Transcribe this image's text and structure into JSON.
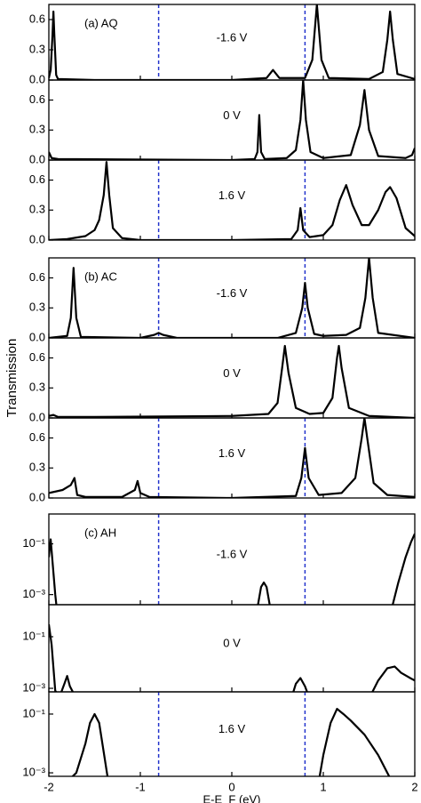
{
  "chart_data": [
    {
      "type": "line",
      "panel_label": "(a) AQ",
      "label": "-1.6 V",
      "color": "#000000",
      "log": false,
      "xlim": [
        -2,
        2
      ],
      "xticks": [
        -2,
        -1,
        0,
        1,
        2
      ],
      "ylim": [
        0,
        0.75
      ],
      "yticks": [
        {
          "value": 0,
          "label": "0.0"
        },
        0.3,
        0.6
      ],
      "vlines": [
        -0.8,
        0.8
      ],
      "vline_color": "#2233cc",
      "x": [
        -2,
        -1.98,
        -1.96,
        -1.95,
        -1.94,
        -1.92,
        -1.9,
        -1.5,
        0,
        0.38,
        0.45,
        0.52,
        0.8,
        0.88,
        0.93,
        0.98,
        1.06,
        1.5,
        1.65,
        1.7,
        1.73,
        1.76,
        1.81,
        2
      ],
      "values": [
        0.02,
        0.1,
        0.45,
        0.68,
        0.45,
        0.05,
        0.01,
        0,
        0,
        0.02,
        0.1,
        0.02,
        0.02,
        0.2,
        0.75,
        0.2,
        0.02,
        0.01,
        0.08,
        0.4,
        0.68,
        0.4,
        0.06,
        0.01
      ]
    },
    {
      "type": "line",
      "label": "0 V",
      "color": "#000000",
      "log": false,
      "xlim": [
        -2,
        2
      ],
      "xticks": [
        -2,
        -1,
        0,
        1,
        2
      ],
      "ylim": [
        0,
        0.8
      ],
      "yticks": [
        {
          "value": 0,
          "label": "0.0"
        },
        0.3,
        0.6
      ],
      "x": [
        -2,
        -1.97,
        -1.9,
        0,
        0.25,
        0.28,
        0.3,
        0.32,
        0.36,
        0.6,
        0.7,
        0.75,
        0.78,
        0.81,
        0.86,
        1.0,
        1.3,
        1.4,
        1.45,
        1.5,
        1.6,
        1.9,
        1.97,
        2
      ],
      "values": [
        0.08,
        0.02,
        0.01,
        0,
        0.01,
        0.08,
        0.45,
        0.08,
        0.01,
        0.02,
        0.1,
        0.4,
        0.8,
        0.4,
        0.08,
        0.02,
        0.05,
        0.35,
        0.7,
        0.3,
        0.04,
        0.02,
        0.05,
        0.12
      ]
    },
    {
      "type": "line",
      "label": "1.6 V",
      "color": "#000000",
      "log": false,
      "xlim": [
        -2,
        2
      ],
      "xticks": [
        -2,
        -1,
        0,
        1,
        2
      ],
      "ylim": [
        0,
        0.8
      ],
      "yticks": [
        {
          "value": 0,
          "label": "0.0"
        },
        0.3,
        0.6
      ],
      "vlines": [
        -0.8,
        0.8
      ],
      "vline_color": "#2233cc",
      "x": [
        -2,
        -1.8,
        -1.6,
        -1.5,
        -1.45,
        -1.4,
        -1.37,
        -1.34,
        -1.3,
        -1.2,
        -1,
        0,
        0.65,
        0.72,
        0.75,
        0.78,
        0.85,
        1.0,
        1.1,
        1.18,
        1.25,
        1.32,
        1.42,
        1.5,
        1.6,
        1.68,
        1.73,
        1.8,
        1.9,
        2
      ],
      "values": [
        0,
        0.01,
        0.04,
        0.1,
        0.2,
        0.45,
        0.78,
        0.45,
        0.12,
        0.02,
        0,
        0,
        0.01,
        0.1,
        0.32,
        0.1,
        0.03,
        0.05,
        0.15,
        0.4,
        0.55,
        0.35,
        0.15,
        0.15,
        0.3,
        0.48,
        0.53,
        0.42,
        0.12,
        0.04
      ]
    },
    {
      "type": "line",
      "panel_label": "(b) AC",
      "label": "-1.6 V",
      "color": "#000000",
      "log": false,
      "xlim": [
        -2,
        2
      ],
      "xticks": [
        -2,
        -1,
        0,
        1,
        2
      ],
      "ylim": [
        0,
        0.8
      ],
      "yticks": [
        {
          "value": 0,
          "label": "0.0"
        },
        0.3,
        0.6
      ],
      "vlines": [
        -0.8,
        0.8
      ],
      "vline_color": "#2233cc",
      "x": [
        -2,
        -1.8,
        -1.76,
        -1.73,
        -1.7,
        -1.65,
        -1,
        -0.85,
        -0.8,
        -0.75,
        -0.6,
        0.5,
        0.7,
        0.77,
        0.8,
        0.83,
        0.9,
        1.0,
        1.25,
        1.4,
        1.46,
        1.5,
        1.54,
        1.6,
        2
      ],
      "values": [
        0,
        0.02,
        0.2,
        0.7,
        0.2,
        0.01,
        0,
        0.03,
        0.05,
        0.03,
        0,
        0,
        0.05,
        0.3,
        0.55,
        0.3,
        0.04,
        0.02,
        0.03,
        0.1,
        0.4,
        0.8,
        0.4,
        0.05,
        0
      ]
    },
    {
      "type": "line",
      "label": "0 V",
      "color": "#000000",
      "log": false,
      "ylabel": "Transmission",
      "xlim": [
        -2,
        2
      ],
      "xticks": [
        -2,
        -1,
        0,
        1,
        2
      ],
      "ylim": [
        0,
        0.8
      ],
      "yticks": [
        {
          "value": 0,
          "label": "0.0"
        },
        0.3,
        0.6
      ],
      "x": [
        -2,
        -1.95,
        -1.9,
        -1.5,
        0,
        0.4,
        0.5,
        0.55,
        0.58,
        0.62,
        0.7,
        0.85,
        1.0,
        1.1,
        1.15,
        1.17,
        1.2,
        1.28,
        1.5,
        2
      ],
      "values": [
        0.02,
        0.03,
        0.01,
        0.01,
        0.02,
        0.04,
        0.15,
        0.5,
        0.72,
        0.45,
        0.1,
        0.04,
        0.05,
        0.2,
        0.6,
        0.72,
        0.5,
        0.1,
        0.02,
        0
      ]
    },
    {
      "type": "line",
      "label": "1.6 V",
      "color": "#000000",
      "log": false,
      "xlim": [
        -2,
        2
      ],
      "xticks": [
        -2,
        -1,
        0,
        1,
        2
      ],
      "ylim": [
        0,
        0.8
      ],
      "yticks": [
        {
          "value": 0,
          "label": "0.0"
        },
        0.3,
        0.6
      ],
      "vlines": [
        -0.8,
        0.8
      ],
      "vline_color": "#2233cc",
      "x": [
        -2,
        -1.85,
        -1.76,
        -1.72,
        -1.69,
        -1.6,
        -1.2,
        -1.06,
        -1.03,
        -1.0,
        -0.9,
        0,
        0.7,
        0.76,
        0.8,
        0.84,
        0.95,
        1.2,
        1.35,
        1.42,
        1.45,
        1.48,
        1.55,
        1.7,
        2
      ],
      "values": [
        0.05,
        0.08,
        0.13,
        0.2,
        0.03,
        0.01,
        0.01,
        0.08,
        0.17,
        0.05,
        0.01,
        0,
        0.02,
        0.2,
        0.5,
        0.2,
        0.03,
        0.05,
        0.2,
        0.6,
        0.8,
        0.6,
        0.15,
        0.03,
        0.01
      ]
    },
    {
      "type": "line",
      "panel_label": "(c) AH",
      "label": "-1.6 V",
      "color": "#000000",
      "log": true,
      "xlim": [
        -2,
        2
      ],
      "xticks": [
        -2,
        -1,
        0,
        1,
        2
      ],
      "ylim": [
        0.0004,
        1.5
      ],
      "yticks": [
        {
          "value": 0.1,
          "label": "10⁻¹"
        },
        {
          "value": 0.001,
          "label": "10⁻³"
        }
      ],
      "vlines": [
        -0.8,
        0.8
      ],
      "vline_color": "#2233cc",
      "x": [
        -2,
        -1.98,
        -1.96,
        -1.93,
        -1.9,
        0.28,
        0.32,
        0.35,
        0.38,
        0.42,
        1.75,
        1.82,
        1.9,
        1.96,
        2
      ],
      "values": [
        0.03,
        0.15,
        0.02,
        0.001,
        0.0001,
        0.0003,
        0.002,
        0.003,
        0.002,
        0.0003,
        0.0003,
        0.003,
        0.03,
        0.12,
        0.25
      ]
    },
    {
      "type": "line",
      "label": "0 V",
      "color": "#000000",
      "log": true,
      "xlim": [
        -2,
        2
      ],
      "xticks": [
        -2,
        -1,
        0,
        1,
        2
      ],
      "ylim": [
        0.00073,
        1.74
      ],
      "yticks": [
        {
          "value": 0.1,
          "label": "10⁻¹"
        },
        {
          "value": 0.001,
          "label": "10⁻³"
        }
      ],
      "x": [
        -2,
        -1.97,
        -1.93,
        -1.88,
        -1.83,
        -1.8,
        -1.77,
        -1.7,
        0.65,
        0.7,
        0.75,
        0.8,
        0.85,
        1.5,
        1.6,
        1.7,
        1.78,
        1.85,
        1.95,
        2
      ],
      "values": [
        0.3,
        0.05,
        0.0008,
        0.0005,
        0.0015,
        0.003,
        0.0012,
        0.0004,
        0.0004,
        0.0015,
        0.0025,
        0.0012,
        0.0004,
        0.0004,
        0.002,
        0.006,
        0.007,
        0.004,
        0.0025,
        0.002
      ]
    },
    {
      "type": "line",
      "label": "1.6 V",
      "color": "#000000",
      "log": true,
      "xlabel": "E-E_F (eV)",
      "xlim": [
        -2,
        2
      ],
      "xticks": [
        -2,
        -1,
        0,
        1,
        2
      ],
      "ylim": [
        0.00076,
        0.57
      ],
      "yticks": [
        {
          "value": 0.1,
          "label": "10⁻¹"
        },
        {
          "value": 0.001,
          "label": "10⁻³"
        }
      ],
      "vlines": [
        -0.8,
        0.8
      ],
      "vline_color": "#2233cc",
      "x": [
        -1.8,
        -1.7,
        -1.6,
        -1.55,
        -1.5,
        -1.45,
        -1.4,
        -1.35,
        0.95,
        1.0,
        1.08,
        1.15,
        1.22,
        1.3,
        1.45,
        1.6,
        1.7,
        1.75
      ],
      "values": [
        0.0005,
        0.001,
        0.01,
        0.05,
        0.1,
        0.05,
        0.005,
        0.0005,
        0.0005,
        0.004,
        0.05,
        0.15,
        0.1,
        0.06,
        0.02,
        0.004,
        0.001,
        0.0005
      ]
    }
  ]
}
